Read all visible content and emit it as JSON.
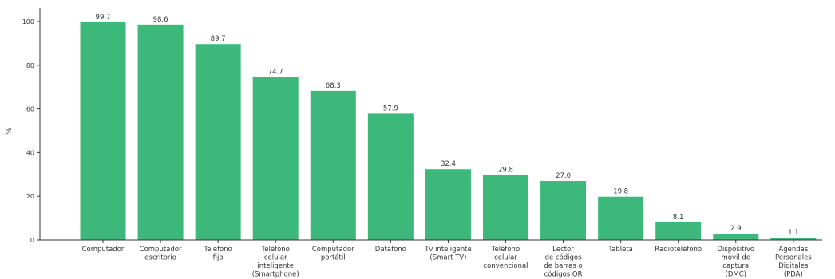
{
  "chart_data": {
    "type": "bar",
    "ylabel": "%",
    "ylim": [
      0,
      100
    ],
    "yticks": [
      0,
      20,
      40,
      60,
      80,
      100
    ],
    "grid": false,
    "bar_color": "#3cb97a",
    "value_labels": [
      "99.7",
      "98.6",
      "89.7",
      "74.7",
      "68.3",
      "57.9",
      "32.4",
      "29.8",
      "27.0",
      "19.8",
      "8.1",
      "2.9",
      "1.1"
    ],
    "categories": [
      [
        "Computador"
      ],
      [
        "Computador",
        "escritorio"
      ],
      [
        "Teléfono",
        "fijo"
      ],
      [
        "Teléfono",
        "celular",
        "inteligente",
        "(Smartphone)"
      ],
      [
        "Computador",
        "portátil"
      ],
      [
        "Datáfono"
      ],
      [
        "Tv inteligente",
        "(Smart TV)"
      ],
      [
        "Teléfono",
        "celular",
        "convencional"
      ],
      [
        "Lector",
        "de códigos",
        "de barras o",
        "códigos QR"
      ],
      [
        "Tableta"
      ],
      [
        "Radioteléfono"
      ],
      [
        "Dispositivo",
        "móvil de",
        "captura",
        "(DMC)"
      ],
      [
        "Agendas",
        "Personales",
        "Digitales",
        "(PDA)"
      ]
    ],
    "values": [
      99.7,
      98.6,
      89.7,
      74.7,
      68.3,
      57.9,
      32.4,
      29.8,
      27.0,
      19.8,
      8.1,
      2.9,
      1.1
    ]
  }
}
